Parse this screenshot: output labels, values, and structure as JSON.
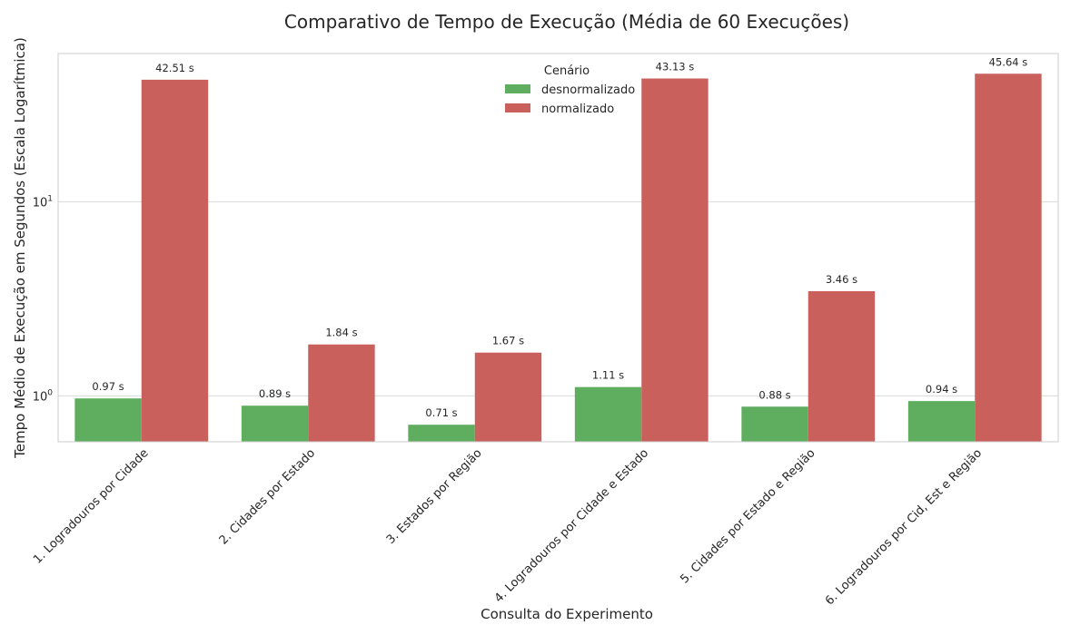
{
  "chart_data": {
    "type": "bar",
    "title": "Comparativo de Tempo de Execução (Média de 60 Execuções)",
    "xlabel": "Consulta do Experimento",
    "ylabel": "Tempo Médio de Execução em Segundos (Escala Logarítmica)",
    "yscale": "log",
    "ylim": [
      0.58,
      58
    ],
    "yticks": [
      {
        "value": 1,
        "base": "10",
        "exp": "0"
      },
      {
        "value": 10,
        "base": "10",
        "exp": "1"
      }
    ],
    "grid": true,
    "categories": [
      "1. Logradouros por Cidade",
      "2. Cidades por Estado",
      "3. Estados por Região",
      "4. Logradouros por Cidade e Estado",
      "5. Cidades por Estado e Região",
      "6. Logradouros por Cid, Est e Região"
    ],
    "series": [
      {
        "name": "desnormalizado",
        "color": "#5fae5f",
        "values": [
          0.97,
          0.89,
          0.71,
          1.11,
          0.88,
          0.94
        ],
        "labels": [
          "0.97 s",
          "0.89 s",
          "0.71 s",
          "1.11 s",
          "0.88 s",
          "0.94 s"
        ]
      },
      {
        "name": "normalizado",
        "color": "#c9605c",
        "values": [
          42.51,
          1.84,
          1.67,
          43.13,
          3.46,
          45.64
        ],
        "labels": [
          "42.51 s",
          "1.84 s",
          "1.67 s",
          "43.13 s",
          "3.46 s",
          "45.64 s"
        ]
      }
    ],
    "legend": {
      "title": "Cenário",
      "position": "top-center"
    }
  }
}
